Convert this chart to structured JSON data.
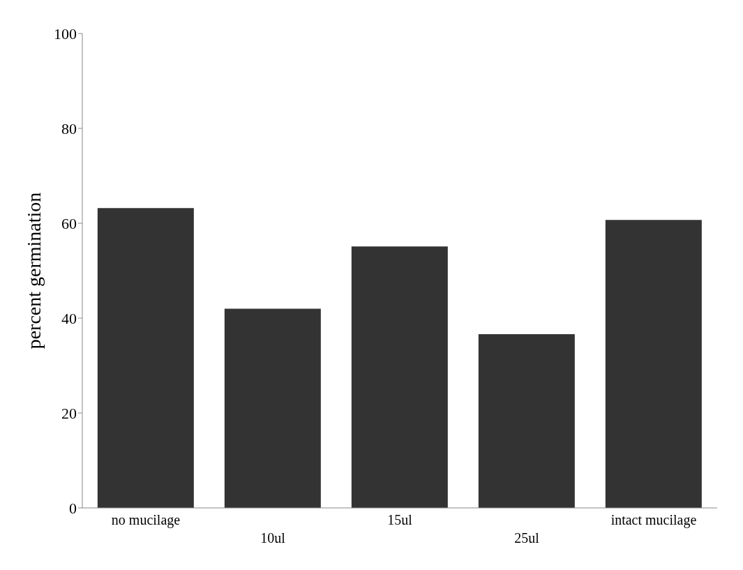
{
  "chart_data": {
    "type": "bar",
    "ylabel": "percent germination",
    "categories": [
      "no mucilage",
      "10ul",
      "15ul",
      "25ul",
      "intact mucilage"
    ],
    "values": [
      63.2,
      42.0,
      55.1,
      36.6,
      60.7
    ],
    "color": "#333333",
    "ylim": [
      0,
      100
    ],
    "yticks": [
      0,
      20,
      40,
      60,
      80,
      100
    ],
    "grid": false,
    "legend": false
  }
}
